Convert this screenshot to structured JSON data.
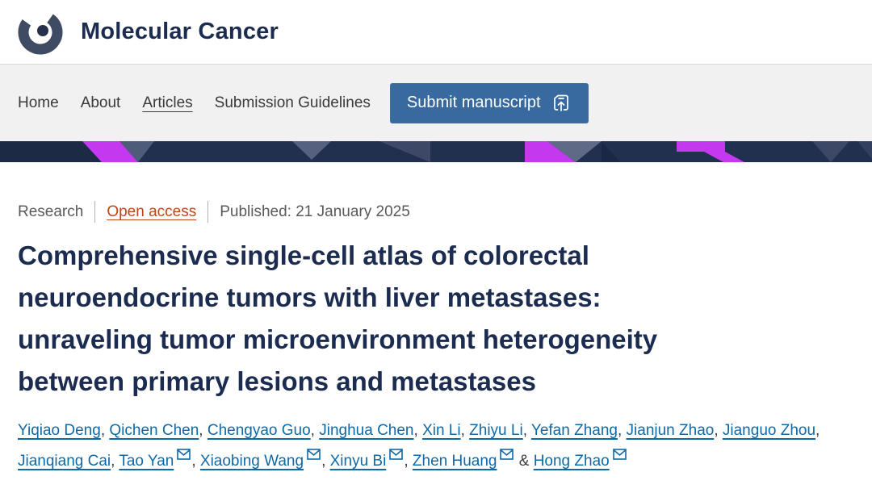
{
  "journal": {
    "name": "Molecular Cancer"
  },
  "nav": {
    "items": [
      {
        "label": "Home",
        "current": false
      },
      {
        "label": "About",
        "current": false
      },
      {
        "label": "Articles",
        "current": true
      },
      {
        "label": "Submission Guidelines",
        "current": false
      }
    ],
    "submit_button": "Submit manuscript"
  },
  "article": {
    "type_label": "Research",
    "access_label": "Open access",
    "published": "Published: 21 January 2025",
    "title": "Comprehensive single-cell atlas of colorectal neuroendocrine tumors with liver metastases: unraveling tumor microenvironment heterogeneity between primary lesions and metastases",
    "title_lines": [
      "Comprehensive single-cell atlas of colorectal",
      "neuroendocrine tumors with liver metastases:",
      "unraveling tumor microenvironment heterogeneity",
      "between primary lesions and metastases"
    ],
    "authors": [
      {
        "name": "Yiqiao Deng",
        "email_icon": false
      },
      {
        "name": "Qichen Chen",
        "email_icon": false
      },
      {
        "name": "Chengyao Guo",
        "email_icon": false
      },
      {
        "name": "Jinghua Chen",
        "email_icon": false
      },
      {
        "name": "Xin Li",
        "email_icon": false
      },
      {
        "name": "Zhiyu Li",
        "email_icon": false
      },
      {
        "name": "Yefan Zhang",
        "email_icon": false
      },
      {
        "name": "Jianjun Zhao",
        "email_icon": false
      },
      {
        "name": "Jianguo Zhou",
        "email_icon": false
      },
      {
        "name": "Jianqiang Cai",
        "email_icon": false
      },
      {
        "name": "Tao Yan",
        "email_icon": true
      },
      {
        "name": "Xiaobing Wang",
        "email_icon": true
      },
      {
        "name": "Xinyu Bi",
        "email_icon": true
      },
      {
        "name": "Zhen Huang",
        "email_icon": true
      },
      {
        "name": "Hong Zhao",
        "email_icon": true
      }
    ],
    "last_author_separator": "&"
  },
  "colors": {
    "navy_text": "#1c2c50",
    "link_blue": "#0f69a6",
    "open_access_orange": "#bf4516",
    "button_blue": "#38699f",
    "banner_navy": "#22304f",
    "banner_purple": "#c438f0"
  }
}
